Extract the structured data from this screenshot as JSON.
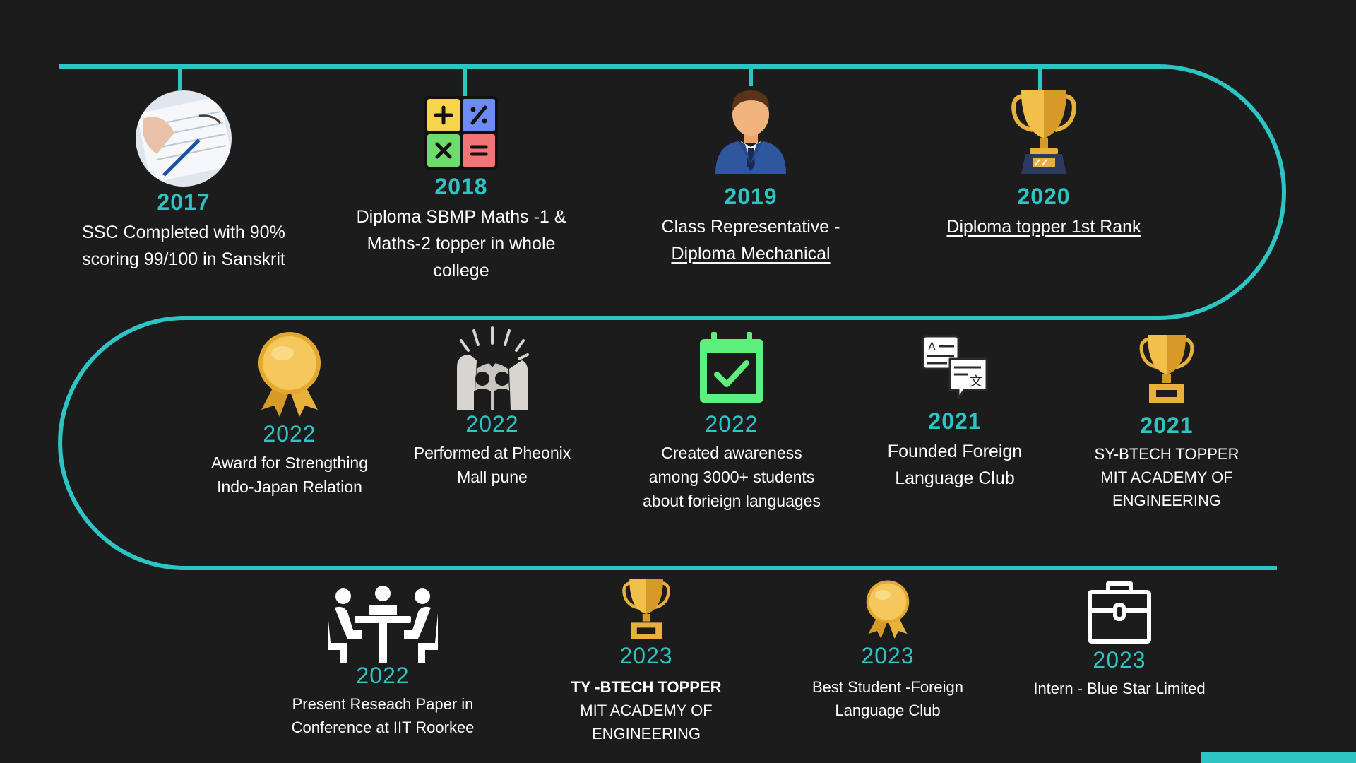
{
  "theme": {
    "accent": "#2ec4c4",
    "background": "#1c1c1c",
    "text": "#ffffff"
  },
  "milestones": [
    {
      "year": "2017",
      "lines": [
        "SSC Completed with 90%",
        "scoring 99/100 in Sanskrit"
      ],
      "icon": "study-photo-icon"
    },
    {
      "year": "2018",
      "lines": [
        "Diploma SBMP Maths -1 &",
        "Maths-2  topper in whole",
        "college"
      ],
      "icon": "calculator-icon"
    },
    {
      "year": "2019",
      "lines": [
        "Class Representative  -",
        "Diploma Mechanical"
      ],
      "icon": "businessman-icon"
    },
    {
      "year": "2020",
      "lines": [
        "Diploma topper 1st Rank "
      ],
      "icon": "trophy-icon"
    },
    {
      "year": "2022",
      "lines": [
        "Award for Strengthing",
        "Indo-Japan Relation"
      ],
      "icon": "medal-icon"
    },
    {
      "year": "2022",
      "lines": [
        "Performed at Pheonix",
        "Mall pune"
      ],
      "icon": "performance-crowd-icon"
    },
    {
      "year": "2022",
      "lines": [
        "Created awareness",
        "among 3000+ students",
        "about forieign languages"
      ],
      "icon": "calendar-check-icon"
    },
    {
      "year": "2021",
      "lines": [
        "Founded Foreign",
        "Language Club"
      ],
      "icon": "translation-icon"
    },
    {
      "year": "2021",
      "lines": [
        "SY-BTECH TOPPER",
        "MIT ACADEMY OF",
        "ENGINEERING"
      ],
      "icon": "trophy-icon"
    },
    {
      "year": "2022",
      "lines": [
        "Present Reseach Paper in",
        "Conference at IIT Roorkee"
      ],
      "icon": "meeting-icon"
    },
    {
      "year": "2023",
      "lines": [
        "TY -BTECH TOPPER",
        "MIT ACADEMY OF",
        "ENGINEERING"
      ],
      "icon": "trophy-icon"
    },
    {
      "year": "2023",
      "lines": [
        "Best Student -Foreign",
        "Language Club"
      ],
      "icon": "medal-icon"
    },
    {
      "year": "2023",
      "lines": [
        "Intern - Blue Star Limited"
      ],
      "icon": "briefcase-icon"
    }
  ]
}
